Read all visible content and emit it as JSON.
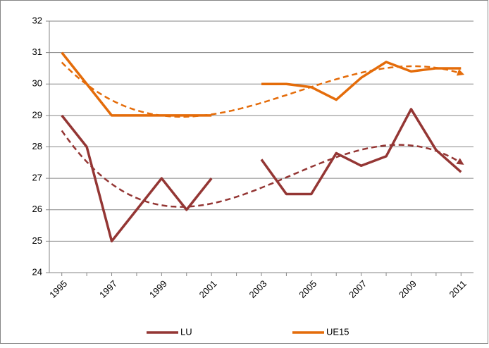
{
  "chart_data": {
    "type": "line",
    "categories": [
      "1995",
      null,
      "1997",
      null,
      "1999",
      null,
      "2001",
      null,
      "2003",
      null,
      "2005",
      null,
      "2007",
      null,
      "2009",
      null,
      "2011"
    ],
    "series": [
      {
        "name": "LU",
        "color": "#943634",
        "values": [
          29,
          28,
          25,
          26,
          27,
          26,
          27,
          null,
          27.6,
          26.5,
          26.5,
          27.8,
          27.4,
          27.7,
          29.2,
          27.9,
          27.2
        ]
      },
      {
        "name": "UE15",
        "color": "#e46c0a",
        "values": [
          31,
          30,
          29,
          29,
          29,
          29,
          29,
          null,
          30,
          30,
          29.9,
          29.5,
          30.2,
          30.7,
          30.4,
          30.5,
          30.5
        ]
      }
    ],
    "ylim": [
      24,
      32
    ],
    "yticks": [
      24,
      25,
      26,
      27,
      28,
      29,
      30,
      31,
      32
    ],
    "grid": true,
    "legend": "bottom",
    "trendline": "polynomial"
  }
}
